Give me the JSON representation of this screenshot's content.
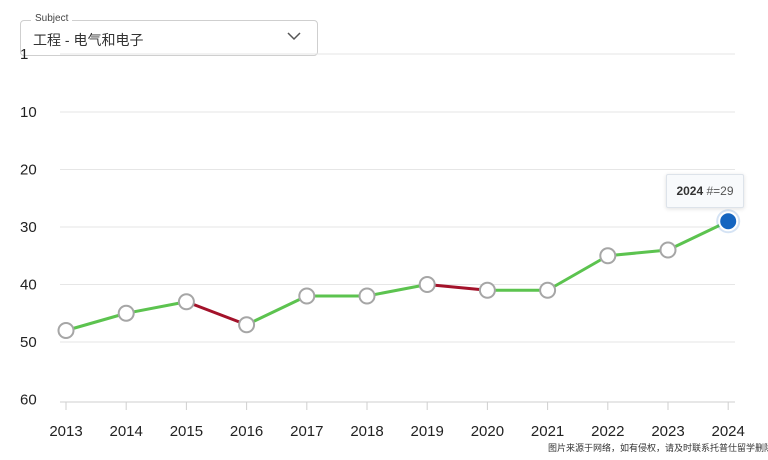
{
  "subject": {
    "legend": "Subject",
    "value": "工程 - 电气和电子",
    "icon": "chevron-down-icon"
  },
  "tooltip": {
    "year": "2024",
    "rank_label": "#=29"
  },
  "watermark": "图片来源于网络，如有侵权，请及时联系托普仕留学删除",
  "colors": {
    "up": "#5cc34f",
    "down": "#a3122a",
    "highlight": "#1565c0",
    "marker_stroke": "#a6a6a6"
  },
  "chart_data": {
    "type": "line",
    "title": "",
    "xlabel": "",
    "ylabel": "",
    "y_inverted": true,
    "ylim": [
      1,
      60
    ],
    "yticks": [
      "1",
      "10",
      "20",
      "30",
      "40",
      "50",
      "60"
    ],
    "categories": [
      "2013",
      "2014",
      "2015",
      "2016",
      "2017",
      "2018",
      "2019",
      "2020",
      "2021",
      "2022",
      "2023",
      "2024"
    ],
    "values": [
      48,
      45,
      43,
      47,
      42,
      42,
      40,
      41,
      41,
      35,
      34,
      29
    ],
    "highlighted": "2024",
    "grid": true
  }
}
